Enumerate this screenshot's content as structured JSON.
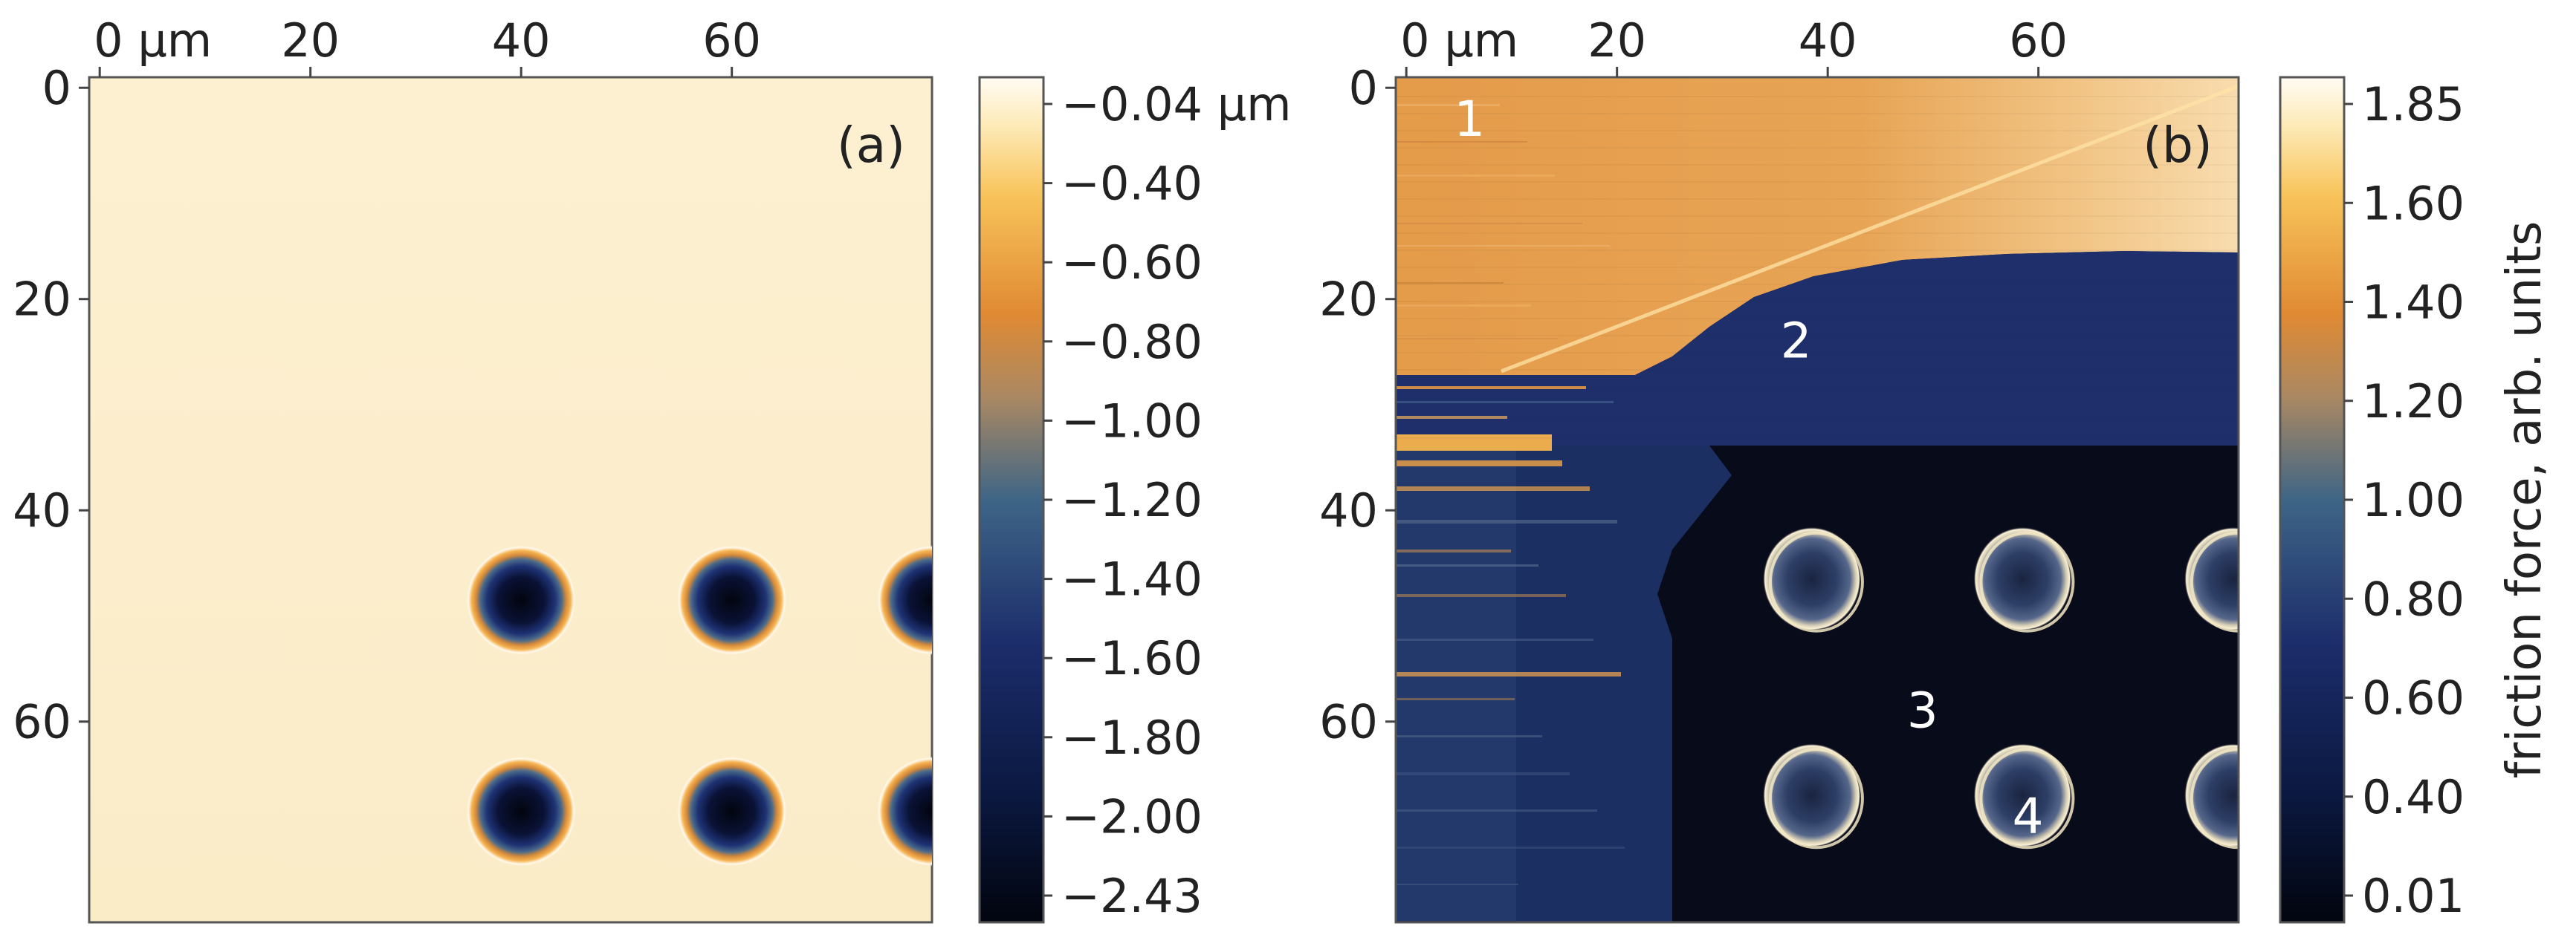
{
  "chart_data": [
    {
      "type": "heatmap",
      "panel_label": "(a)",
      "x_ticks": [
        {
          "value": 0,
          "label": "0 µm"
        },
        {
          "value": 20,
          "label": "20"
        },
        {
          "value": 40,
          "label": "40"
        },
        {
          "value": 60,
          "label": "60"
        }
      ],
      "y_ticks": [
        {
          "value": 0,
          "label": "0"
        },
        {
          "value": 20,
          "label": "20"
        },
        {
          "value": 40,
          "label": "40"
        },
        {
          "value": 60,
          "label": "60"
        }
      ],
      "xlim": [
        -1,
        79
      ],
      "ylim": [
        -1,
        79
      ],
      "axis_position": {
        "x": "top",
        "y": "left"
      },
      "colorbar": {
        "range": [
          -2.43,
          -0.04
        ],
        "ticks": [
          {
            "value": -0.04,
            "label": "−0.04 µm"
          },
          {
            "value": -0.4,
            "label": "−0.40"
          },
          {
            "value": -0.6,
            "label": "−0.60"
          },
          {
            "value": -0.8,
            "label": "−0.80"
          },
          {
            "value": -1.0,
            "label": "−1.00"
          },
          {
            "value": -1.2,
            "label": "−1.20"
          },
          {
            "value": -1.4,
            "label": "−1.40"
          },
          {
            "value": -1.6,
            "label": "−1.60"
          },
          {
            "value": -1.8,
            "label": "−1.80"
          },
          {
            "value": -2.0,
            "label": "−2.00"
          },
          {
            "value": -2.43,
            "label": "−2.43"
          }
        ]
      },
      "background_value": -0.1,
      "pits": [
        {
          "x": 40,
          "y": 48.5,
          "depth": -2.43
        },
        {
          "x": 60,
          "y": 48.5,
          "depth": -2.43
        },
        {
          "x": 79,
          "y": 48.5,
          "depth": -2.43
        },
        {
          "x": 40,
          "y": 68.5,
          "depth": -2.43
        },
        {
          "x": 60,
          "y": 68.5,
          "depth": -2.43
        },
        {
          "x": 79,
          "y": 68.5,
          "depth": -2.43
        }
      ]
    },
    {
      "type": "heatmap",
      "panel_label": "(b)",
      "x_ticks": [
        {
          "value": 0,
          "label": "0 µm"
        },
        {
          "value": 20,
          "label": "20"
        },
        {
          "value": 40,
          "label": "40"
        },
        {
          "value": 60,
          "label": "60"
        }
      ],
      "y_ticks": [
        {
          "value": 0,
          "label": "0"
        },
        {
          "value": 20,
          "label": "20"
        },
        {
          "value": 40,
          "label": "40"
        },
        {
          "value": 60,
          "label": "60"
        }
      ],
      "xlim": [
        -1,
        79
      ],
      "ylim": [
        -1,
        79
      ],
      "axis_position": {
        "x": "top",
        "y": "left"
      },
      "colorbar": {
        "label": "friction force, arb. units",
        "range": [
          0.01,
          1.85
        ],
        "ticks": [
          {
            "value": 1.85,
            "label": "1.85"
          },
          {
            "value": 1.6,
            "label": "1.60"
          },
          {
            "value": 1.4,
            "label": "1.40"
          },
          {
            "value": 1.2,
            "label": "1.20"
          },
          {
            "value": 1.0,
            "label": "1.00"
          },
          {
            "value": 0.8,
            "label": "0.80"
          },
          {
            "value": 0.6,
            "label": "0.60"
          },
          {
            "value": 0.4,
            "label": "0.40"
          },
          {
            "value": 0.01,
            "label": "0.01"
          }
        ]
      },
      "region_labels": [
        {
          "text": "1",
          "x": 6,
          "y": 3
        },
        {
          "text": "2",
          "x": 37,
          "y": 24
        },
        {
          "text": "3",
          "x": 49,
          "y": 59
        },
        {
          "text": "4",
          "x": 59,
          "y": 69
        }
      ],
      "regions": [
        {
          "name": "1",
          "value": 1.38
        },
        {
          "name": "2",
          "value": 0.36
        },
        {
          "name": "3",
          "value": 0.05
        },
        {
          "name": "4",
          "value": 1.0
        }
      ],
      "pits": [
        {
          "x": 38.5,
          "y": 46.5
        },
        {
          "x": 58.5,
          "y": 46.5
        },
        {
          "x": 78.5,
          "y": 46.5
        },
        {
          "x": 38.5,
          "y": 67
        },
        {
          "x": 58.5,
          "y": 67
        },
        {
          "x": 78.5,
          "y": 67
        }
      ]
    }
  ],
  "colors": {
    "colormap": [
      {
        "t": 0.0,
        "hex": "#02050e"
      },
      {
        "t": 0.15,
        "hex": "#0b1840"
      },
      {
        "t": 0.33,
        "hex": "#1c2d6b"
      },
      {
        "t": 0.5,
        "hex": "#3e6586"
      },
      {
        "t": 0.62,
        "hex": "#a98863"
      },
      {
        "t": 0.72,
        "hex": "#e08a33"
      },
      {
        "t": 0.86,
        "hex": "#f8c35a"
      },
      {
        "t": 0.94,
        "hex": "#fde9b4"
      },
      {
        "t": 1.0,
        "hex": "#fffcf4"
      }
    ],
    "surface_a": "#fcefcd",
    "region_1": "#e19a4e",
    "region_1_bright": "#f6c98c",
    "region_2": "#1d2d6b",
    "region_3": "#080b1a",
    "pit_rim": "#f3e7c4",
    "label_text": "#ffffff",
    "text": "#222222"
  }
}
